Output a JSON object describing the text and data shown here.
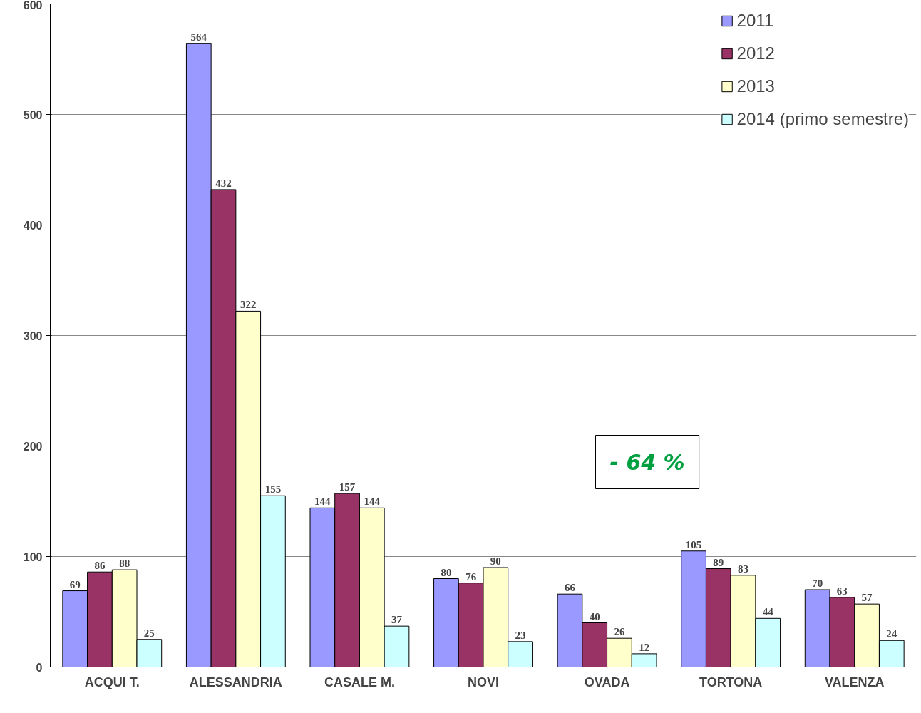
{
  "chart_data": {
    "type": "bar",
    "categories": [
      "ACQUI T.",
      "ALESSANDRIA",
      "CASALE M.",
      "NOVI",
      "OVADA",
      "TORTONA",
      "VALENZA"
    ],
    "series": [
      {
        "name": "2011",
        "color": "#9999ff",
        "values": [
          69,
          564,
          144,
          80,
          66,
          105,
          70
        ]
      },
      {
        "name": "2012",
        "color": "#993366",
        "values": [
          86,
          432,
          157,
          76,
          40,
          89,
          63
        ]
      },
      {
        "name": "2013",
        "color": "#ffffcc",
        "values": [
          88,
          322,
          144,
          90,
          26,
          83,
          57
        ]
      },
      {
        "name": "2014 (primo semestre)",
        "color": "#ccffff",
        "values": [
          25,
          155,
          37,
          23,
          12,
          44,
          24
        ]
      }
    ],
    "ylim": [
      0,
      600
    ],
    "yticks": [
      0,
      100,
      200,
      300,
      400,
      500,
      600
    ],
    "grid": "y",
    "legend": "top right",
    "data_labels": true,
    "annotations": [
      "- 64 %"
    ]
  }
}
